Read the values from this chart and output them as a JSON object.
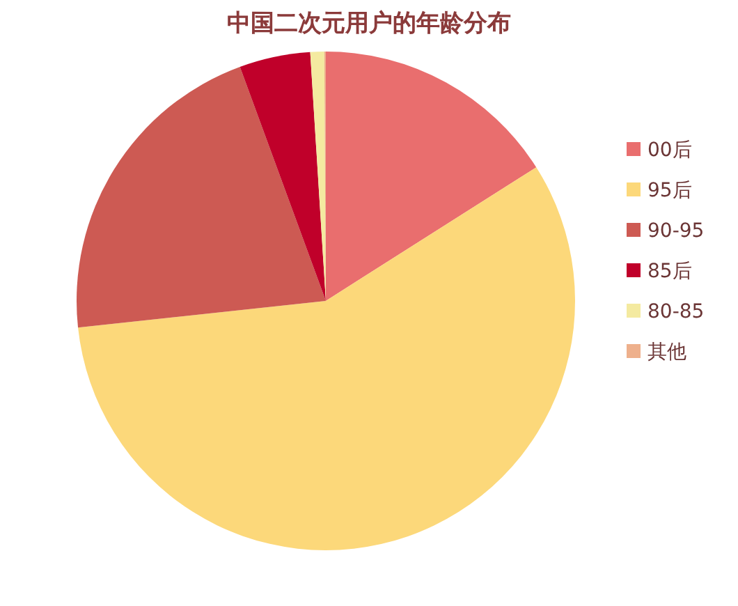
{
  "chart_data": {
    "type": "pie",
    "title": "中国二次元用户的年龄分布",
    "categories": [
      "00后",
      "95后",
      "90-95",
      "85后",
      "80-85",
      "其他"
    ],
    "values": [
      16.0,
      57.3,
      21.1,
      4.6,
      0.9,
      0.1
    ],
    "colors": [
      "#e96e6e",
      "#fcd87a",
      "#cd5a53",
      "#c0002a",
      "#f4eaa0",
      "#eeb08c"
    ],
    "legend": "right"
  }
}
